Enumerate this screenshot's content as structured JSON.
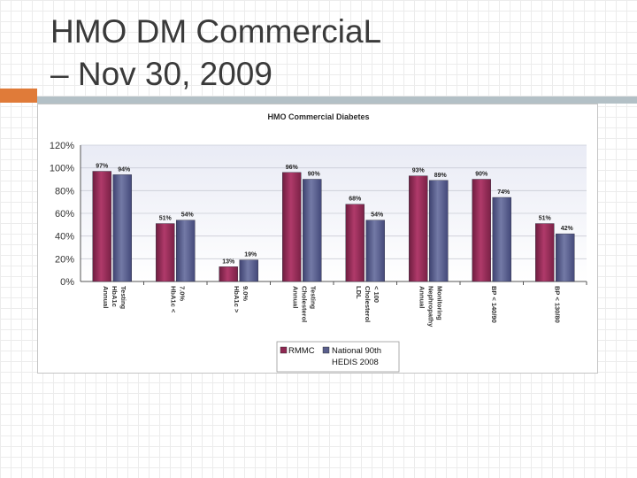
{
  "slide": {
    "title_line1": "HMO DM Commercia​L",
    "title_line2": "– Nov 30, 2009"
  },
  "colors": {
    "title": "#3a3a3a",
    "accent": "#e07b39",
    "rule": "#b3c0c6",
    "rmmc": "#8e2852",
    "hedis": "#5a5f8c"
  },
  "chart_data": {
    "type": "bar",
    "title": "HMO Commercial Diabetes",
    "ylim": [
      0,
      1.2
    ],
    "yticks": [
      "0%",
      "20%",
      "40%",
      "60%",
      "80%",
      "100%",
      "120%"
    ],
    "grid": true,
    "legend_position": "bottom",
    "categories": [
      [
        "Annual",
        "HbA1c",
        "Testing"
      ],
      [
        "HbA1c <",
        "7.0%"
      ],
      [
        "HbA1c >",
        "9.0%"
      ],
      [
        "Annual",
        "Cholesterol",
        "Testing"
      ],
      [
        "LDL",
        "Cholesterol",
        "< 100"
      ],
      [
        "Annual",
        "Nephropathy",
        "Monitoring"
      ],
      [
        "BP < 140/90"
      ],
      [
        "BP < 130/80"
      ]
    ],
    "series": [
      {
        "name": "RMMC",
        "values": [
          0.97,
          0.51,
          0.13,
          0.96,
          0.68,
          0.93,
          0.9,
          0.51
        ],
        "labels": [
          "97%",
          "51%",
          "13%",
          "96%",
          "68%",
          "93%",
          "90%",
          "51%"
        ]
      },
      {
        "name": "National 90th HEDIS 2008",
        "legend_lines": [
          "National 90th",
          "HEDIS 2008"
        ],
        "values": [
          0.94,
          0.54,
          0.19,
          0.9,
          0.54,
          0.89,
          0.74,
          0.42
        ],
        "labels": [
          "94%",
          "54%",
          "19%",
          "90%",
          "54%",
          "89%",
          "74%",
          "42%"
        ]
      }
    ]
  }
}
